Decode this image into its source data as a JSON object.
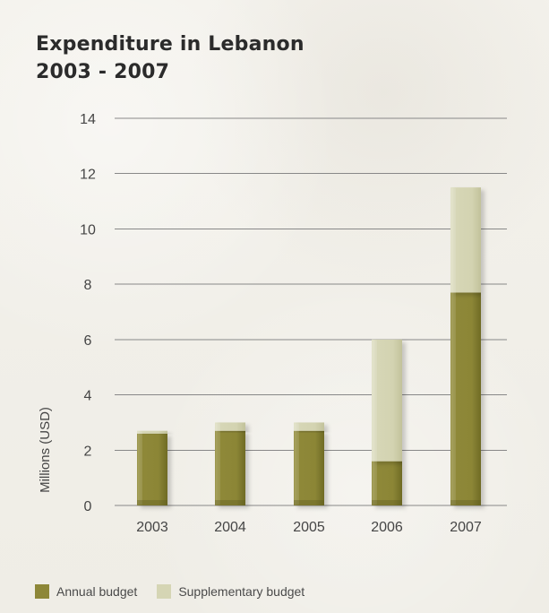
{
  "chart_data": {
    "type": "bar",
    "title_lines": [
      "Expenditure in Lebanon",
      "2003 - 2007"
    ],
    "ylabel": "Millions (USD)",
    "categories": [
      "2003",
      "2004",
      "2005",
      "2006",
      "2007"
    ],
    "series": [
      {
        "name": "Annual budget",
        "color": "#8d8738",
        "values": [
          2.6,
          2.7,
          2.7,
          1.6,
          7.7
        ]
      },
      {
        "name": "Supplementary budget",
        "color": "#d5d5b4",
        "values": [
          0.1,
          0.3,
          0.3,
          4.4,
          3.8
        ]
      }
    ],
    "y_ticks": [
      0,
      2,
      4,
      6,
      8,
      10,
      12,
      14
    ],
    "ylim": [
      0,
      14
    ],
    "grid": true,
    "stacked": true,
    "legend_placement": "bottom-left"
  }
}
